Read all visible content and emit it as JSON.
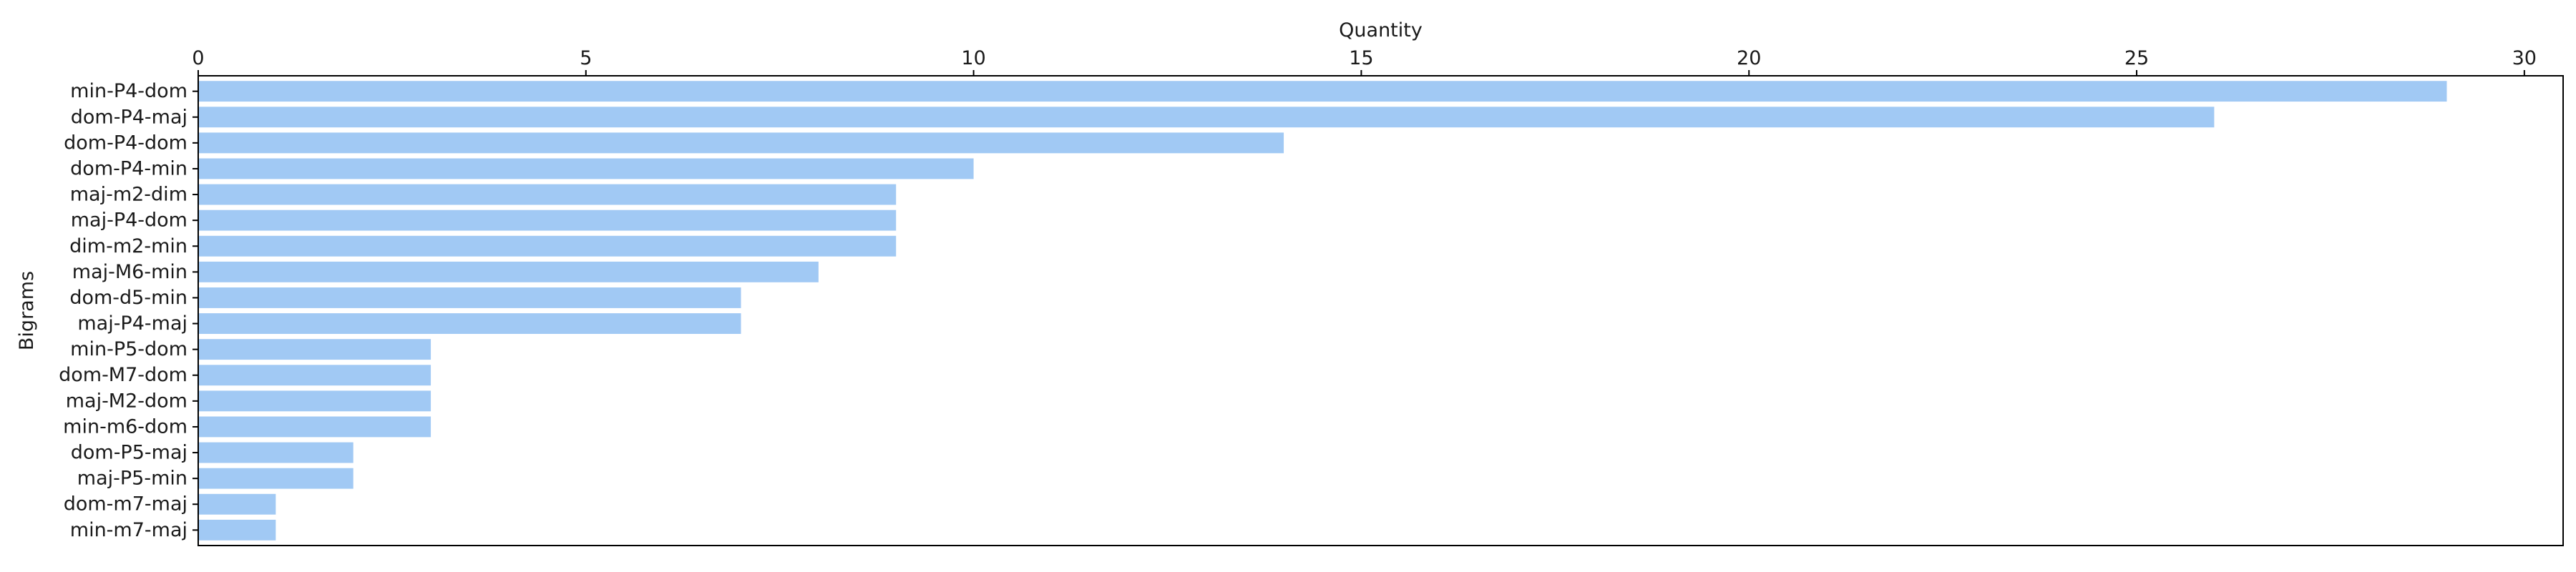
{
  "chart_data": {
    "type": "bar",
    "orientation": "horizontal",
    "title": "",
    "xlabel": "Quantity",
    "ylabel": "Bigrams",
    "xlim": [
      0,
      30.5
    ],
    "x_ticks": [
      0,
      5,
      10,
      15,
      20,
      25,
      30
    ],
    "x_axis_position": "top",
    "grid": false,
    "bar_color": "#a1c9f4",
    "categories": [
      "min-P4-dom",
      "dom-P4-maj",
      "dom-P4-dom",
      "dom-P4-min",
      "maj-m2-dim",
      "maj-P4-dom",
      "dim-m2-min",
      "maj-M6-min",
      "dom-d5-min",
      "maj-P4-maj",
      "min-P5-dom",
      "dom-M7-dom",
      "maj-M2-dom",
      "min-m6-dom",
      "dom-P5-maj",
      "maj-P5-min",
      "dom-m7-maj",
      "min-m7-maj"
    ],
    "values": [
      29,
      26,
      14,
      10,
      9,
      9,
      9,
      8,
      7,
      7,
      3,
      3,
      3,
      3,
      2,
      2,
      1,
      1
    ]
  }
}
